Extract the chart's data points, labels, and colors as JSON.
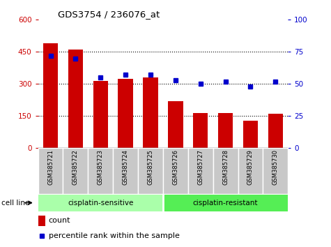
{
  "title": "GDS3754 / 236076_at",
  "samples": [
    "GSM385721",
    "GSM385722",
    "GSM385723",
    "GSM385724",
    "GSM385725",
    "GSM385726",
    "GSM385727",
    "GSM385728",
    "GSM385729",
    "GSM385730"
  ],
  "counts": [
    490,
    460,
    315,
    325,
    330,
    220,
    165,
    165,
    130,
    160
  ],
  "percentile_ranks": [
    72,
    70,
    55,
    57,
    57,
    53,
    50,
    52,
    48,
    52
  ],
  "groups": [
    {
      "label": "cisplatin-sensitive",
      "start": 0,
      "end": 5,
      "color": "#aaffaa"
    },
    {
      "label": "cisplatin-resistant",
      "start": 5,
      "end": 10,
      "color": "#55ee55"
    }
  ],
  "bar_color": "#cc0000",
  "dot_color": "#0000cc",
  "ylim_left": [
    0,
    600
  ],
  "ylim_right": [
    0,
    100
  ],
  "yticks_left": [
    0,
    150,
    300,
    450,
    600
  ],
  "yticks_right": [
    0,
    25,
    50,
    75,
    100
  ],
  "ylabel_left_color": "#cc0000",
  "ylabel_right_color": "#0000cc",
  "tick_label_bg": "#c8c8c8",
  "legend_count_label": "count",
  "legend_pct_label": "percentile rank within the sample",
  "cell_line_label": "cell line"
}
